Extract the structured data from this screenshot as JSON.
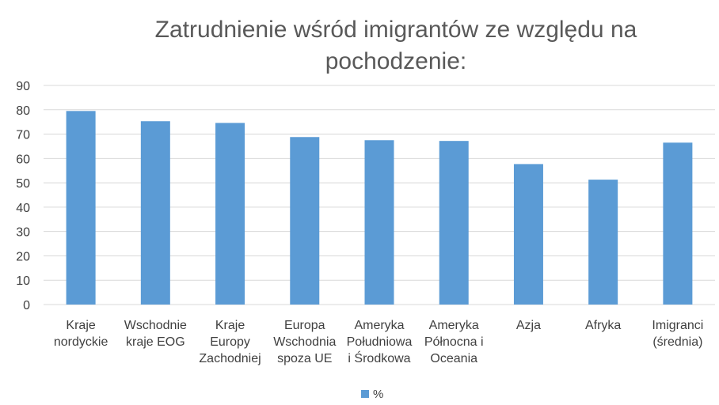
{
  "chart_data": {
    "type": "bar",
    "title": "Zatrudnienie wśród imigrantów ze względu na pochodzenie:",
    "categories": [
      [
        "Kraje",
        "nordyckie"
      ],
      [
        "Wschodnie",
        "kraje EOG"
      ],
      [
        "Kraje",
        "Europy",
        "Zachodniej"
      ],
      [
        "Europa",
        "Wschodnia",
        "spoza UE"
      ],
      [
        "Ameryka",
        "Południowa",
        "i Środkowa"
      ],
      [
        "Ameryka",
        "Północna i",
        "Oceania"
      ],
      [
        "Azja"
      ],
      [
        "Afryka"
      ],
      [
        "Imigranci",
        "(średnia)"
      ]
    ],
    "series": [
      {
        "name": "%",
        "values": [
          79.5,
          75.3,
          74.6,
          68.8,
          67.5,
          67.2,
          57.7,
          51.3,
          66.5
        ]
      }
    ],
    "ylim": [
      0,
      90
    ],
    "yticks": [
      "0",
      "10",
      "20",
      "30",
      "40",
      "50",
      "60",
      "70",
      "80",
      "90"
    ],
    "grid": true,
    "legend_position": "bottom",
    "colors": {
      "bar": "#5B9BD5",
      "grid": "#D9D9D9",
      "axis_text": "#404040",
      "title": "#595959"
    }
  }
}
